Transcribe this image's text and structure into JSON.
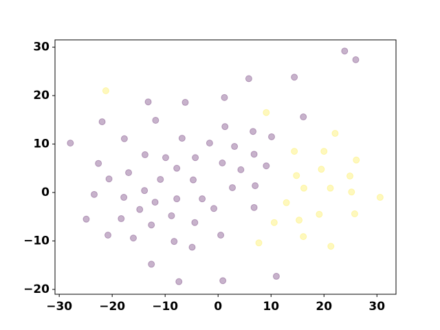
{
  "chart_data": {
    "type": "scatter",
    "xlim": [
      -30.8,
      33.6
    ],
    "ylim": [
      -21,
      31.5
    ],
    "xticks": [
      {
        "value": -30,
        "label": "−30"
      },
      {
        "value": -20,
        "label": "−20"
      },
      {
        "value": -10,
        "label": "−10"
      },
      0,
      10,
      20,
      30
    ],
    "yticks": [
      {
        "value": -20,
        "label": "−20"
      },
      {
        "value": -10,
        "label": "−10"
      },
      0,
      10,
      20,
      30
    ],
    "opacity": 0.3,
    "series": [
      {
        "color": "#440154",
        "x": [
          -27.9,
          23.9,
          26.0,
          5.8,
          14.4,
          -13.2,
          -6.2,
          1.2,
          -21.9,
          -11.8,
          16.1,
          1.3,
          6.6,
          -17.7,
          -6.8,
          10.1,
          -1.6,
          3.1,
          6.8,
          -22.6,
          -13.8,
          -9.9,
          -4.3,
          0.8,
          4.3,
          9.1,
          -16.9,
          -7.8,
          -20.6,
          -10.9,
          -4.7,
          -23.4,
          -13.9,
          2.7,
          7.0,
          -17.8,
          -7.8,
          -3.0,
          -11.9,
          -14.8,
          -0.8,
          6.8,
          -24.9,
          -18.3,
          -8.8,
          -4.4,
          -12.6,
          -20.8,
          -16.0,
          0.5,
          -8.3,
          -4.9,
          -12.6,
          11.0,
          -7.4,
          0.9
        ],
        "values": [
          10.2,
          29.2,
          27.4,
          23.5,
          23.8,
          18.7,
          18.6,
          19.6,
          14.6,
          14.9,
          15.6,
          13.6,
          12.6,
          11.1,
          11.2,
          11.5,
          10.2,
          9.5,
          7.9,
          6.0,
          7.8,
          7.2,
          7.2,
          6.1,
          4.7,
          5.5,
          4.1,
          5.0,
          2.8,
          2.7,
          2.6,
          -0.4,
          0.4,
          1.0,
          1.4,
          -1.0,
          -1.3,
          -1.3,
          -2.0,
          -3.5,
          -3.3,
          -3.1,
          -5.5,
          -5.4,
          -4.8,
          -6.2,
          -6.7,
          -8.8,
          -9.4,
          -8.8,
          -10.1,
          -11.3,
          -14.8,
          -17.3,
          -18.4,
          -18.2
        ]
      },
      {
        "color": "#fde725",
        "x": [
          -21.2,
          9.1,
          22.1,
          14.4,
          20.0,
          26.1,
          19.5,
          14.8,
          24.9,
          16.2,
          21.2,
          25.2,
          30.6,
          12.9,
          15.3,
          19.1,
          25.8,
          10.6,
          16.1,
          7.7,
          21.3
        ],
        "values": [
          21.0,
          16.5,
          12.2,
          8.5,
          8.5,
          6.7,
          4.8,
          3.5,
          3.4,
          0.9,
          0.9,
          0.1,
          -1.0,
          -2.1,
          -5.7,
          -4.5,
          -4.4,
          -6.2,
          -9.1,
          -10.4,
          -11.1
        ]
      }
    ]
  }
}
